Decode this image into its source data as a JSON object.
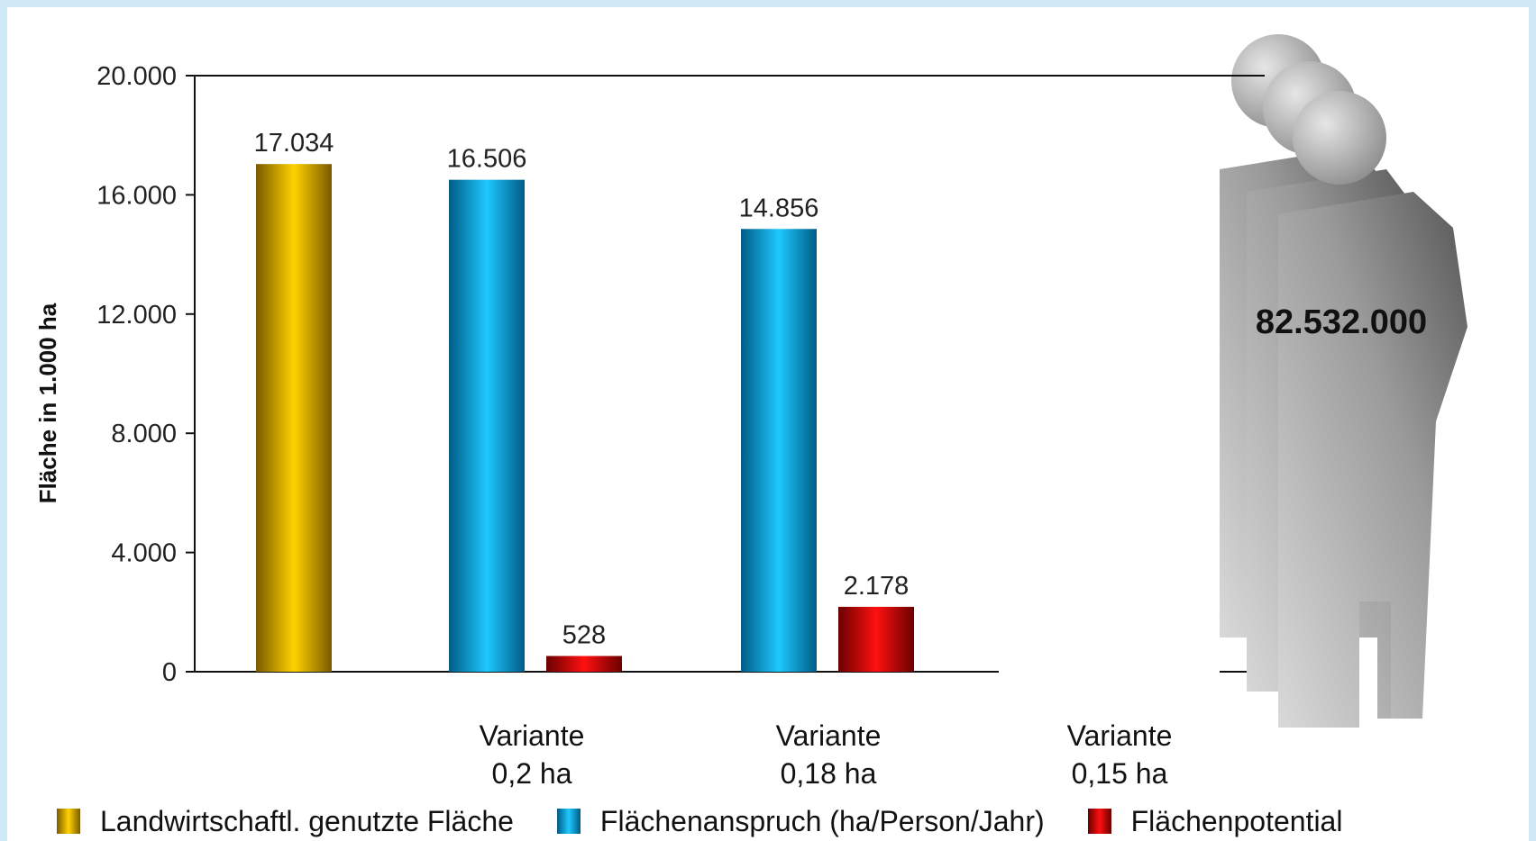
{
  "chart_data": {
    "type": "bar",
    "ylabel": "Fläche in 1.000 ha",
    "ylim": [
      0,
      20000
    ],
    "yticks": [
      "0",
      "4.000",
      "8.000",
      "12.000",
      "16.000",
      "20.000"
    ],
    "ytick_values": [
      0,
      4000,
      8000,
      12000,
      16000,
      20000
    ],
    "groups": [
      {
        "label_line1": "",
        "label_line2": ""
      },
      {
        "label_line1": "Variante",
        "label_line2": "0,2 ha"
      },
      {
        "label_line1": "Variante",
        "label_line2": "0,18 ha"
      },
      {
        "label_line1": "Variante",
        "label_line2": "0,15 ha"
      }
    ],
    "series": [
      {
        "name": "Landwirtschaftl. genutzte Fläche",
        "color": "#f2c200",
        "values": [
          17034,
          null,
          null,
          null
        ],
        "labels": [
          "17.034",
          "",
          "",
          ""
        ]
      },
      {
        "name": "Flächenanspruch (ha/Person/Jahr)",
        "color": "#14b4e6",
        "values": [
          null,
          16506,
          14856,
          null
        ],
        "labels": [
          "",
          "16.506",
          "14.856",
          ""
        ]
      },
      {
        "name": "Flächenpotential",
        "color": "#e00000",
        "values": [
          null,
          528,
          2178,
          null
        ],
        "labels": [
          "",
          "528",
          "2.178",
          ""
        ]
      }
    ],
    "grid": false,
    "legend_position": "bottom",
    "annotation": "82.532.000"
  }
}
